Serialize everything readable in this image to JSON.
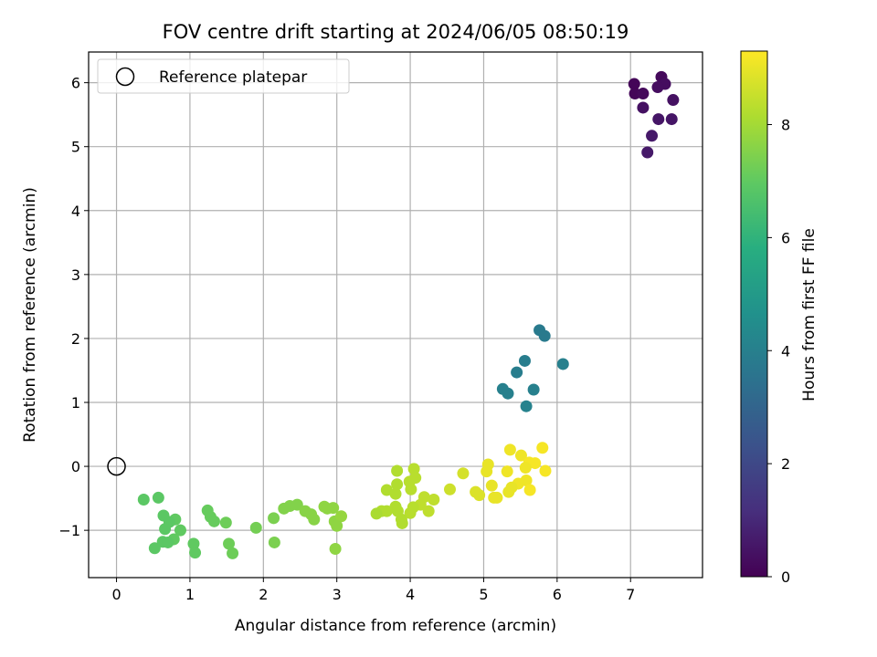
{
  "chart_data": {
    "type": "scatter",
    "title": "FOV centre drift starting at 2024/06/05 08:50:19",
    "xlabel": "Angular distance from reference (arcmin)",
    "ylabel": "Rotation from reference (arcmin)",
    "xlim": [
      -0.38,
      7.98
    ],
    "ylim": [
      -1.74,
      6.48
    ],
    "x_ticks": [
      0,
      1,
      2,
      3,
      4,
      5,
      6,
      7
    ],
    "y_ticks": [
      -1,
      0,
      1,
      2,
      3,
      4,
      5,
      6
    ],
    "x_tick_labels": [
      "0",
      "1",
      "2",
      "3",
      "4",
      "5",
      "6",
      "7"
    ],
    "y_tick_labels": [
      "−1",
      "0",
      "1",
      "2",
      "3",
      "4",
      "5",
      "6"
    ],
    "grid": true,
    "legend": {
      "placement": "top-left",
      "entries": [
        "Reference platepar"
      ]
    },
    "reference_point": {
      "name": "Reference platepar",
      "x": 0,
      "y": 0
    },
    "colorbar": {
      "label": "Hours from first FF file",
      "range": [
        0,
        9.3
      ],
      "ticks": [
        0,
        2,
        4,
        6,
        8
      ],
      "tick_labels": [
        "0",
        "2",
        "4",
        "6",
        "8"
      ],
      "colormap": "viridis"
    },
    "series": [
      {
        "points": [
          {
            "x": 7.05,
            "y": 5.98,
            "c": 0.1
          },
          {
            "x": 7.06,
            "y": 5.83,
            "c": 0.1
          },
          {
            "x": 7.17,
            "y": 5.83,
            "c": 0.2
          },
          {
            "x": 7.42,
            "y": 6.09,
            "c": 0.2
          },
          {
            "x": 7.47,
            "y": 5.98,
            "c": 0.3
          },
          {
            "x": 7.37,
            "y": 5.93,
            "c": 0.3
          },
          {
            "x": 7.58,
            "y": 5.73,
            "c": 0.4
          },
          {
            "x": 7.17,
            "y": 5.61,
            "c": 0.4
          },
          {
            "x": 7.38,
            "y": 5.43,
            "c": 0.5
          },
          {
            "x": 7.56,
            "y": 5.43,
            "c": 0.5
          },
          {
            "x": 7.29,
            "y": 5.17,
            "c": 0.6
          },
          {
            "x": 7.23,
            "y": 4.91,
            "c": 0.6
          },
          {
            "x": 5.76,
            "y": 2.13,
            "c": 3.8
          },
          {
            "x": 5.83,
            "y": 2.04,
            "c": 3.8
          },
          {
            "x": 5.56,
            "y": 1.65,
            "c": 3.9
          },
          {
            "x": 6.08,
            "y": 1.6,
            "c": 4.0
          },
          {
            "x": 5.45,
            "y": 1.47,
            "c": 3.9
          },
          {
            "x": 5.26,
            "y": 1.21,
            "c": 4.0
          },
          {
            "x": 5.68,
            "y": 1.2,
            "c": 4.0
          },
          {
            "x": 5.33,
            "y": 1.14,
            "c": 4.0
          },
          {
            "x": 5.58,
            "y": 0.94,
            "c": 4.1
          },
          {
            "x": 5.8,
            "y": 0.29,
            "c": 9.2
          },
          {
            "x": 5.36,
            "y": 0.26,
            "c": 9.1
          },
          {
            "x": 5.06,
            "y": 0.03,
            "c": 9.0
          },
          {
            "x": 5.51,
            "y": 0.17,
            "c": 9.1
          },
          {
            "x": 5.04,
            "y": -0.08,
            "c": 9.0
          },
          {
            "x": 5.62,
            "y": 0.06,
            "c": 9.2
          },
          {
            "x": 5.7,
            "y": 0.05,
            "c": 9.2
          },
          {
            "x": 5.57,
            "y": -0.02,
            "c": 9.1
          },
          {
            "x": 5.84,
            "y": -0.07,
            "c": 9.2
          },
          {
            "x": 5.32,
            "y": -0.08,
            "c": 9.1
          },
          {
            "x": 5.58,
            "y": -0.22,
            "c": 9.1
          },
          {
            "x": 5.47,
            "y": -0.27,
            "c": 9.1
          },
          {
            "x": 5.11,
            "y": -0.3,
            "c": 9.0
          },
          {
            "x": 5.63,
            "y": -0.37,
            "c": 9.2
          },
          {
            "x": 5.38,
            "y": -0.33,
            "c": 9.0
          },
          {
            "x": 5.34,
            "y": -0.4,
            "c": 9.0
          },
          {
            "x": 5.14,
            "y": -0.49,
            "c": 9.0
          },
          {
            "x": 5.18,
            "y": -0.49,
            "c": 9.0
          },
          {
            "x": 4.89,
            "y": -0.4,
            "c": 8.8
          },
          {
            "x": 4.94,
            "y": -0.45,
            "c": 8.8
          },
          {
            "x": 4.72,
            "y": -0.11,
            "c": 8.7
          },
          {
            "x": 4.54,
            "y": -0.36,
            "c": 8.6
          },
          {
            "x": 3.82,
            "y": -0.07,
            "c": 8.2
          },
          {
            "x": 4.05,
            "y": -0.04,
            "c": 8.3
          },
          {
            "x": 4.07,
            "y": -0.18,
            "c": 8.3
          },
          {
            "x": 3.99,
            "y": -0.24,
            "c": 8.3
          },
          {
            "x": 3.82,
            "y": -0.28,
            "c": 8.2
          },
          {
            "x": 3.68,
            "y": -0.37,
            "c": 8.2
          },
          {
            "x": 3.8,
            "y": -0.43,
            "c": 8.2
          },
          {
            "x": 4.01,
            "y": -0.36,
            "c": 8.3
          },
          {
            "x": 4.19,
            "y": -0.48,
            "c": 8.4
          },
          {
            "x": 4.32,
            "y": -0.52,
            "c": 8.4
          },
          {
            "x": 4.14,
            "y": -0.6,
            "c": 8.4
          },
          {
            "x": 4.04,
            "y": -0.64,
            "c": 8.3
          },
          {
            "x": 3.8,
            "y": -0.63,
            "c": 8.2
          },
          {
            "x": 3.83,
            "y": -0.7,
            "c": 8.2
          },
          {
            "x": 3.68,
            "y": -0.7,
            "c": 8.2
          },
          {
            "x": 3.61,
            "y": -0.7,
            "c": 8.2
          },
          {
            "x": 3.54,
            "y": -0.74,
            "c": 8.1
          },
          {
            "x": 4.0,
            "y": -0.73,
            "c": 8.3
          },
          {
            "x": 4.25,
            "y": -0.7,
            "c": 8.4
          },
          {
            "x": 3.88,
            "y": -0.83,
            "c": 8.2
          },
          {
            "x": 3.89,
            "y": -0.89,
            "c": 8.2
          },
          {
            "x": 2.36,
            "y": -0.62,
            "c": 7.5
          },
          {
            "x": 2.46,
            "y": -0.6,
            "c": 7.5
          },
          {
            "x": 2.28,
            "y": -0.66,
            "c": 7.5
          },
          {
            "x": 2.57,
            "y": -0.7,
            "c": 7.6
          },
          {
            "x": 2.65,
            "y": -0.75,
            "c": 7.6
          },
          {
            "x": 2.69,
            "y": -0.83,
            "c": 7.6
          },
          {
            "x": 2.83,
            "y": -0.63,
            "c": 7.7
          },
          {
            "x": 2.87,
            "y": -0.66,
            "c": 7.7
          },
          {
            "x": 2.95,
            "y": -0.65,
            "c": 7.7
          },
          {
            "x": 2.97,
            "y": -0.86,
            "c": 7.7
          },
          {
            "x": 3.06,
            "y": -0.78,
            "c": 7.8
          },
          {
            "x": 3.0,
            "y": -0.93,
            "c": 7.7
          },
          {
            "x": 2.98,
            "y": -1.29,
            "c": 7.7
          },
          {
            "x": 2.14,
            "y": -0.81,
            "c": 7.4
          },
          {
            "x": 1.9,
            "y": -0.96,
            "c": 7.3
          },
          {
            "x": 2.15,
            "y": -1.19,
            "c": 7.4
          },
          {
            "x": 0.37,
            "y": -0.52,
            "c": 6.9
          },
          {
            "x": 0.57,
            "y": -0.49,
            "c": 6.9
          },
          {
            "x": 0.64,
            "y": -0.77,
            "c": 6.9
          },
          {
            "x": 0.8,
            "y": -0.83,
            "c": 7.0
          },
          {
            "x": 0.72,
            "y": -0.87,
            "c": 6.9
          },
          {
            "x": 0.66,
            "y": -0.98,
            "c": 6.9
          },
          {
            "x": 0.87,
            "y": -1.0,
            "c": 7.0
          },
          {
            "x": 0.78,
            "y": -1.14,
            "c": 7.0
          },
          {
            "x": 0.63,
            "y": -1.18,
            "c": 6.9
          },
          {
            "x": 0.7,
            "y": -1.19,
            "c": 6.9
          },
          {
            "x": 0.52,
            "y": -1.28,
            "c": 6.9
          },
          {
            "x": 1.05,
            "y": -1.21,
            "c": 7.0
          },
          {
            "x": 1.07,
            "y": -1.35,
            "c": 7.0
          },
          {
            "x": 1.24,
            "y": -0.69,
            "c": 7.1
          },
          {
            "x": 1.28,
            "y": -0.79,
            "c": 7.1
          },
          {
            "x": 1.33,
            "y": -0.86,
            "c": 7.1
          },
          {
            "x": 1.49,
            "y": -0.88,
            "c": 7.2
          },
          {
            "x": 1.53,
            "y": -1.21,
            "c": 7.2
          },
          {
            "x": 1.58,
            "y": -1.36,
            "c": 7.2
          }
        ]
      }
    ]
  }
}
